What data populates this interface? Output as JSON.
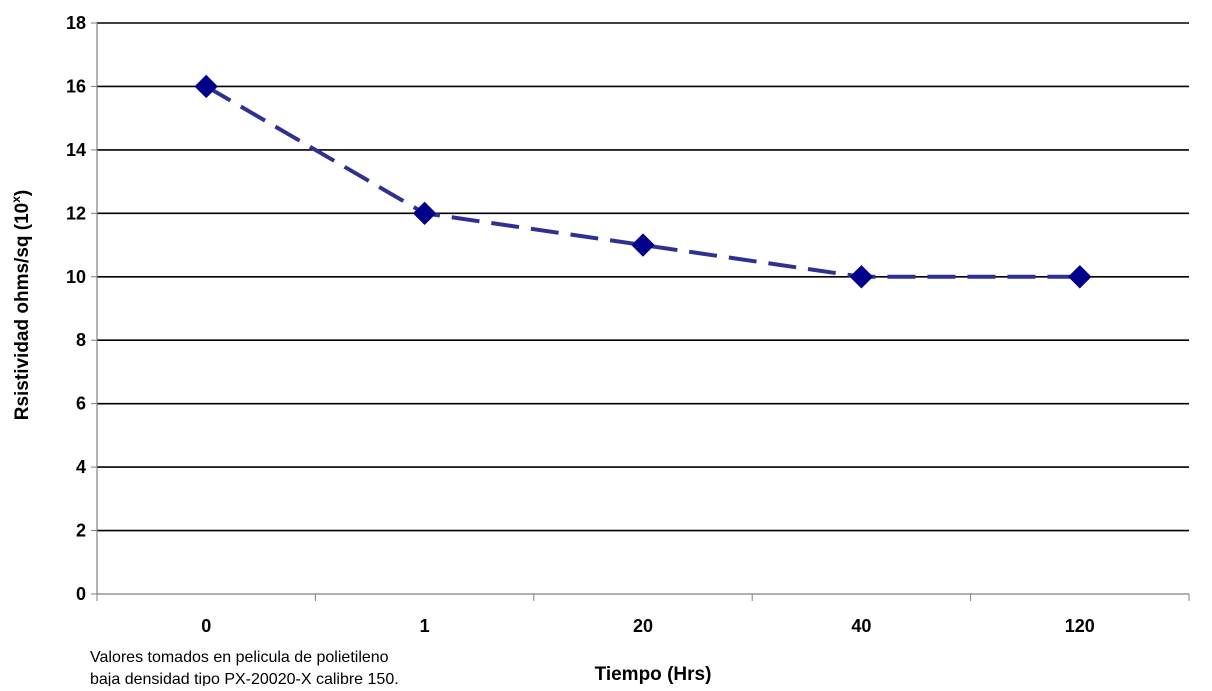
{
  "chart_data": {
    "type": "line",
    "categories": [
      "0",
      "1",
      "20",
      "40",
      "120"
    ],
    "series": [
      {
        "values": [
          16,
          12,
          11,
          10,
          10
        ],
        "color": "#2E3192",
        "marker_color": "#00008B",
        "line_style": "dashed",
        "marker": "diamond"
      }
    ],
    "xlabel": "Tiempo (Hrs)",
    "ylabel": {
      "main": "Rsistividad ohms/sq (10",
      "superscript": "x",
      "suffix": ")"
    },
    "ylim": [
      0,
      18
    ],
    "yticks": [
      "0",
      "2",
      "4",
      "6",
      "8",
      "10",
      "12",
      "14",
      "16",
      "18"
    ],
    "grid": "horizontal",
    "legend": "none",
    "note_lines": [
      "Valores tomados en pelicula de polietileno",
      "baja densidad tipo PX-20020-X  calibre 150."
    ]
  }
}
